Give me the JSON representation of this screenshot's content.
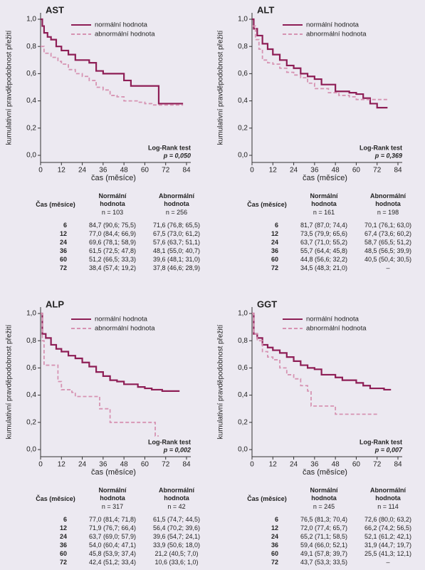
{
  "chart_data": [
    {
      "type": "step",
      "title": "AST",
      "ylabel": "kumulativní pravděpodobnost přežití",
      "xlabel": "čas (měsíce)",
      "annotation": "Log-Rank test",
      "pvalue": "p = 0,050",
      "xlim": [
        0,
        84
      ],
      "xticks": [
        0,
        12,
        24,
        36,
        48,
        60,
        72,
        84
      ],
      "ylim": [
        0,
        1.0
      ],
      "yticks": [
        {
          "value": 0,
          "label": "0,0"
        },
        {
          "value": 0.2,
          "label": "0,2"
        },
        {
          "value": 0.4,
          "label": "0,4"
        },
        {
          "value": 0.6,
          "label": "0,6"
        },
        {
          "value": 0.8,
          "label": "0,8"
        },
        {
          "value": 1.0,
          "label": "1,0"
        }
      ],
      "series": [
        {
          "name": "normální hodnota",
          "color": "#8e1e56",
          "linestyle": "solid",
          "x": [
            0,
            1,
            2,
            4,
            6,
            9,
            12,
            16,
            20,
            28,
            32,
            36,
            48,
            52,
            68,
            82
          ],
          "values": [
            1.0,
            0.95,
            0.9,
            0.87,
            0.85,
            0.8,
            0.77,
            0.74,
            0.7,
            0.68,
            0.62,
            0.6,
            0.55,
            0.51,
            0.38,
            0.38
          ]
        },
        {
          "name": "abnormální hodnota",
          "color": "#d693b2",
          "linestyle": "dashed",
          "x": [
            0,
            2,
            6,
            10,
            12,
            16,
            20,
            24,
            28,
            32,
            36,
            40,
            44,
            48,
            56,
            60,
            64,
            82
          ],
          "values": [
            0.8,
            0.75,
            0.72,
            0.69,
            0.67,
            0.63,
            0.6,
            0.58,
            0.55,
            0.5,
            0.48,
            0.44,
            0.43,
            0.4,
            0.39,
            0.38,
            0.37,
            0.37
          ]
        }
      ]
    },
    {
      "type": "step",
      "title": "ALT",
      "ylabel": "kumulativní pravděpodobnost přežití",
      "xlabel": "čas (měsíce)",
      "annotation": "Log-Rank test",
      "pvalue": "p = 0,369",
      "xlim": [
        0,
        84
      ],
      "xticks": [
        0,
        12,
        24,
        36,
        48,
        60,
        72,
        84
      ],
      "ylim": [
        0,
        1.0
      ],
      "yticks": [
        {
          "value": 0,
          "label": "0,0"
        },
        {
          "value": 0.2,
          "label": "0,2"
        },
        {
          "value": 0.4,
          "label": "0,4"
        },
        {
          "value": 0.6,
          "label": "0,6"
        },
        {
          "value": 0.8,
          "label": "0,8"
        },
        {
          "value": 1.0,
          "label": "1,0"
        }
      ],
      "series": [
        {
          "name": "normální hodnota",
          "color": "#8e1e56",
          "linestyle": "solid",
          "x": [
            0,
            1,
            3,
            6,
            9,
            12,
            16,
            20,
            24,
            28,
            32,
            36,
            40,
            48,
            56,
            60,
            64,
            68,
            72,
            78
          ],
          "values": [
            1.0,
            0.93,
            0.88,
            0.82,
            0.78,
            0.74,
            0.7,
            0.66,
            0.64,
            0.6,
            0.58,
            0.56,
            0.52,
            0.47,
            0.46,
            0.45,
            0.42,
            0.38,
            0.35,
            0.35
          ]
        },
        {
          "name": "abnormální hodnota",
          "color": "#d693b2",
          "linestyle": "dashed",
          "x": [
            0,
            2,
            4,
            6,
            9,
            12,
            16,
            20,
            24,
            28,
            32,
            36,
            44,
            50,
            56,
            60,
            78
          ],
          "values": [
            0.95,
            0.85,
            0.78,
            0.7,
            0.68,
            0.67,
            0.64,
            0.61,
            0.59,
            0.57,
            0.53,
            0.49,
            0.46,
            0.44,
            0.43,
            0.41,
            0.41
          ]
        }
      ]
    },
    {
      "type": "step",
      "title": "ALP",
      "ylabel": "kumulativní pravděpodobnost přežití",
      "xlabel": "čas (měsíce)",
      "annotation": "Log-Rank test",
      "pvalue": "p = 0,002",
      "xlim": [
        0,
        84
      ],
      "xticks": [
        0,
        12,
        24,
        36,
        48,
        60,
        72,
        84
      ],
      "ylim": [
        0,
        1.0
      ],
      "yticks": [
        {
          "value": 0,
          "label": "0,0"
        },
        {
          "value": 0.2,
          "label": "0,2"
        },
        {
          "value": 0.4,
          "label": "0,4"
        },
        {
          "value": 0.6,
          "label": "0,6"
        },
        {
          "value": 0.8,
          "label": "0,8"
        },
        {
          "value": 1.0,
          "label": "1,0"
        }
      ],
      "series": [
        {
          "name": "normální hodnota",
          "color": "#8e1e56",
          "linestyle": "solid",
          "x": [
            0,
            1,
            3,
            6,
            9,
            12,
            16,
            20,
            24,
            28,
            32,
            36,
            40,
            44,
            48,
            56,
            60,
            64,
            70,
            80
          ],
          "values": [
            1.0,
            0.85,
            0.82,
            0.77,
            0.74,
            0.72,
            0.69,
            0.67,
            0.64,
            0.61,
            0.57,
            0.54,
            0.51,
            0.5,
            0.48,
            0.46,
            0.45,
            0.44,
            0.43,
            0.43
          ]
        },
        {
          "name": "abnormální hodnota",
          "color": "#d693b2",
          "linestyle": "dashed",
          "x": [
            0,
            1,
            2,
            10,
            12,
            18,
            20,
            34,
            40,
            66,
            68
          ],
          "values": [
            1.0,
            0.8,
            0.62,
            0.5,
            0.44,
            0.42,
            0.39,
            0.3,
            0.2,
            0.1,
            0.1
          ]
        }
      ]
    },
    {
      "type": "step",
      "title": "GGT",
      "ylabel": "kumulativní pravděpodobnost přežití",
      "xlabel": "čas (měsíce)",
      "annotation": "Log-Rank test",
      "pvalue": "p = 0,007",
      "xlim": [
        0,
        84
      ],
      "xticks": [
        0,
        12,
        24,
        36,
        48,
        60,
        72,
        84
      ],
      "ylim": [
        0,
        1.0
      ],
      "yticks": [
        {
          "value": 0,
          "label": "0,0"
        },
        {
          "value": 0.2,
          "label": "0,2"
        },
        {
          "value": 0.4,
          "label": "0,4"
        },
        {
          "value": 0.6,
          "label": "0,6"
        },
        {
          "value": 0.8,
          "label": "0,8"
        },
        {
          "value": 1.0,
          "label": "1,0"
        }
      ],
      "series": [
        {
          "name": "normální hodnota",
          "color": "#8e1e56",
          "linestyle": "solid",
          "x": [
            0,
            1,
            3,
            6,
            9,
            12,
            16,
            20,
            24,
            28,
            32,
            36,
            40,
            48,
            52,
            60,
            64,
            68,
            76,
            80
          ],
          "values": [
            1.0,
            0.85,
            0.82,
            0.77,
            0.75,
            0.73,
            0.71,
            0.68,
            0.65,
            0.62,
            0.6,
            0.59,
            0.55,
            0.53,
            0.51,
            0.49,
            0.47,
            0.45,
            0.44,
            0.44
          ]
        },
        {
          "name": "abnormální hodnota",
          "color": "#d693b2",
          "linestyle": "dashed",
          "x": [
            0,
            1,
            3,
            6,
            9,
            12,
            16,
            20,
            24,
            28,
            32,
            34,
            48,
            72
          ],
          "values": [
            1.0,
            0.85,
            0.8,
            0.72,
            0.68,
            0.66,
            0.6,
            0.55,
            0.52,
            0.47,
            0.43,
            0.32,
            0.26,
            0.26
          ]
        }
      ]
    }
  ],
  "tables": [
    {
      "header": "Čas (měsíce)",
      "columns": [
        {
          "title": "Normální hodnota",
          "n": "n = 103"
        },
        {
          "title": "Abnormální hodnota",
          "n": "n = 256"
        }
      ],
      "rows": [
        [
          6,
          "84,7 (90,6; 75,5)",
          "71,6 (76,8; 65,5)"
        ],
        [
          12,
          "77,0 (84,4; 66,9)",
          "67,5 (73,0; 61,2)"
        ],
        [
          24,
          "69,6 (78,1; 58,9)",
          "57,6 (63,7; 51,1)"
        ],
        [
          36,
          "61,5 (72,5; 47,8)",
          "48,1 (55,0; 40,7)"
        ],
        [
          60,
          "51,2 (66,5; 33,3)",
          "39,6 (48,1; 31,0)"
        ],
        [
          72,
          "38,4 (57,4; 19,2)",
          "37,8 (46,6; 28,9)"
        ]
      ]
    },
    {
      "header": "Čas (měsíce)",
      "columns": [
        {
          "title": "Normální hodnota",
          "n": "n = 161"
        },
        {
          "title": "Abnormální hodnota",
          "n": "n = 198"
        }
      ],
      "rows": [
        [
          6,
          "81,7 (87,0; 74,4)",
          "70,1 (76,1; 63,0)"
        ],
        [
          12,
          "73,5 (79,9; 65,6)",
          "67,4 (73,6; 60,2)"
        ],
        [
          24,
          "63,7 (71,0; 55,2)",
          "58,7 (65,5; 51,2)"
        ],
        [
          36,
          "55,7 (64,4; 45,8)",
          "48,5 (56,5; 39,9)"
        ],
        [
          60,
          "44,8 (56,6; 32,2)",
          "40,5 (50,4; 30,5)"
        ],
        [
          72,
          "34,5 (48,3; 21,0)",
          "–"
        ]
      ]
    },
    {
      "header": "Čas (měsíce)",
      "columns": [
        {
          "title": "Normální hodnota",
          "n": "n = 317"
        },
        {
          "title": "Abnormální hodnota",
          "n": "n = 42"
        }
      ],
      "rows": [
        [
          6,
          "77,0 (81,4; 71,8)",
          "61,5 (74,7; 44,5)"
        ],
        [
          12,
          "71,9 (76,7; 66,4)",
          "56,4 (70,2; 39,6)"
        ],
        [
          24,
          "63,7 (69,0; 57,9)",
          "39,6 (54,7; 24,1)"
        ],
        [
          36,
          "54,0 (60,4; 47,1)",
          "33,9 (50,6; 18,0)"
        ],
        [
          60,
          "45,8 (53,9; 37,4)",
          "21,2 (40,5; 7,0)"
        ],
        [
          72,
          "42,4 (51,2; 33,4)",
          "10,6 (33,6; 1,0)"
        ]
      ]
    },
    {
      "header": "Čas (měsíce)",
      "columns": [
        {
          "title": "Normální hodnota",
          "n": "n = 245"
        },
        {
          "title": "Abnormální hodnota",
          "n": "n = 114"
        }
      ],
      "rows": [
        [
          6,
          "76,5 (81,3; 70,4)",
          "72,6 (80,0; 63,2)"
        ],
        [
          12,
          "72,0 (77,4; 65,7)",
          "66,2 (74,2; 56,5)"
        ],
        [
          24,
          "65,2 (71,1; 58,5)",
          "52,1 (61,2; 42,1)"
        ],
        [
          36,
          "59,4 (66,0; 52,1)",
          "31,9 (44,7; 19,7)"
        ],
        [
          60,
          "49,1 (57,8; 39,7)",
          "25,5 (41,3; 12,1)"
        ],
        [
          72,
          "43,7 (53,3; 33,5)",
          "–"
        ]
      ]
    }
  ]
}
